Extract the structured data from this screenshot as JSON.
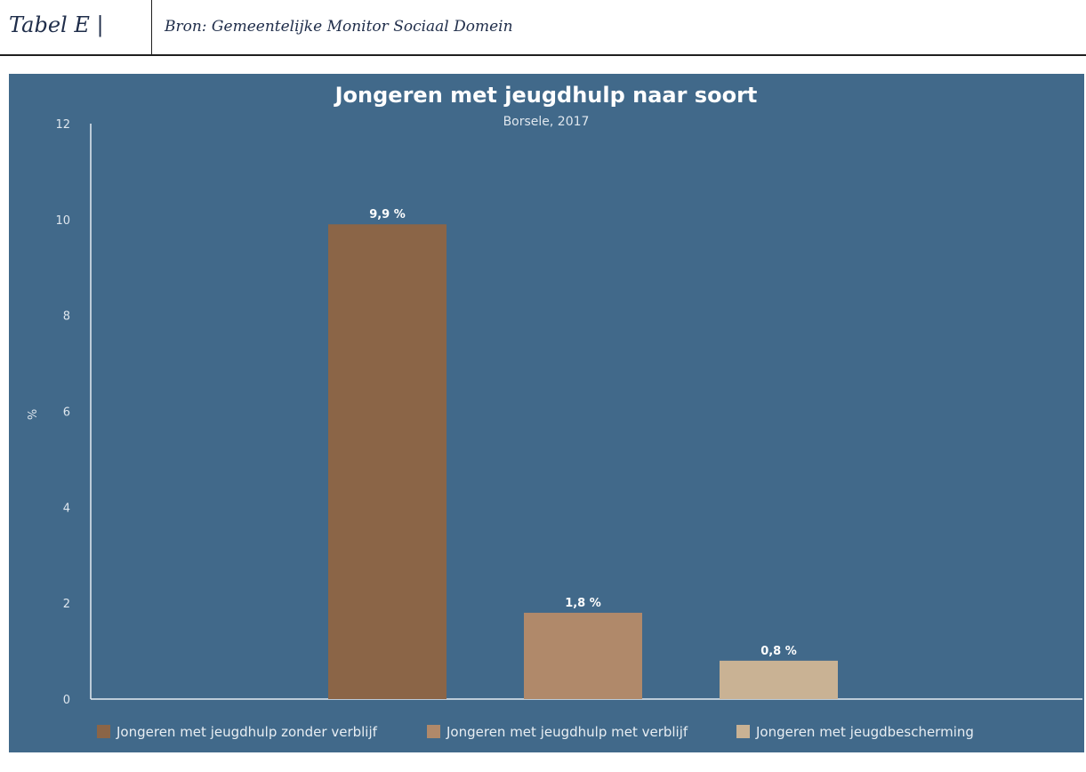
{
  "table_header": {
    "label": "Tabel E |",
    "source": "Bron: Gemeentelijke Monitor Sociaal Domein"
  },
  "chart_data": {
    "type": "bar",
    "title": "Jongeren met jeugdhulp naar soort",
    "subtitle": "Borsele, 2017",
    "xlabel": "",
    "ylabel": "%",
    "ylim": [
      0,
      12
    ],
    "yticks": [
      0,
      2,
      4,
      6,
      8,
      10,
      12
    ],
    "grid": false,
    "legend_position": "bottom",
    "categories": [
      "Jongeren met jeugdhulp zonder verblijf",
      "Jongeren met jeugdhulp met verblijf",
      "Jongeren met jeugdbescherming"
    ],
    "values": [
      9.9,
      1.8,
      0.8
    ],
    "data_labels": [
      "9,9 %",
      "1,8 %",
      "0,8 %"
    ],
    "colors": [
      "#8b6547",
      "#b0896a",
      "#c9b294"
    ],
    "background_color": "#41698a"
  }
}
